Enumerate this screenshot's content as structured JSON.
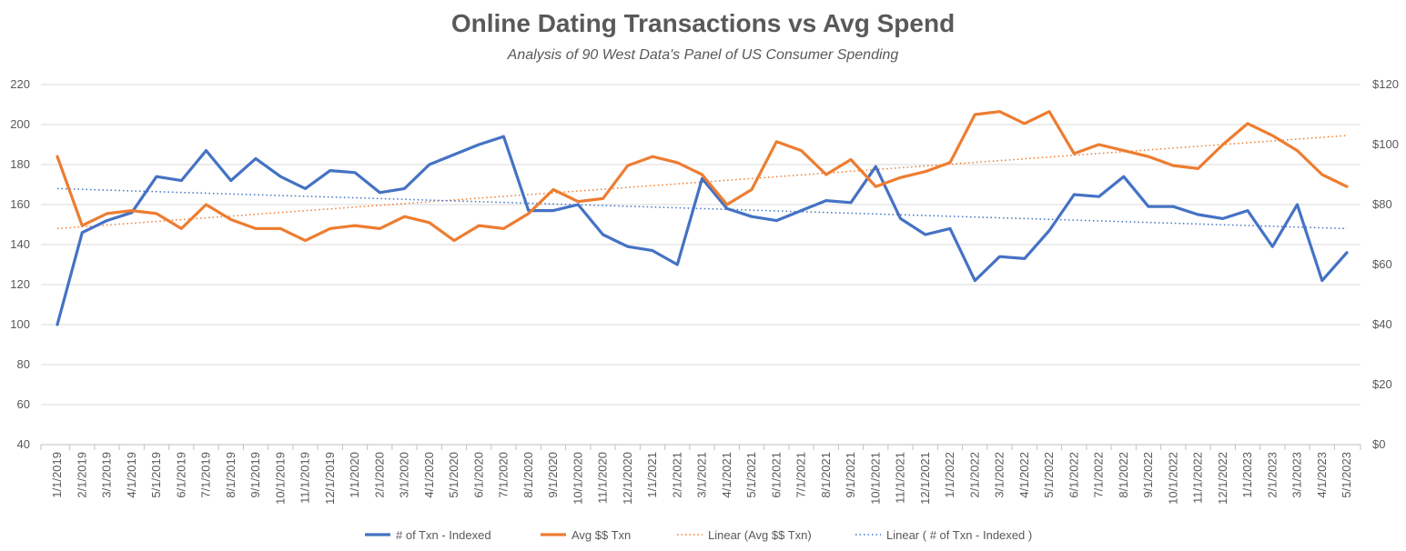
{
  "chart_data": {
    "type": "line",
    "title": "Online Dating Transactions vs Avg Spend",
    "subtitle": "Analysis of 90 West Data's Panel of US Consumer Spending",
    "x": [
      "1/1/2019",
      "2/1/2019",
      "3/1/2019",
      "4/1/2019",
      "5/1/2019",
      "6/1/2019",
      "7/1/2019",
      "8/1/2019",
      "9/1/2019",
      "10/1/2019",
      "11/1/2019",
      "12/1/2019",
      "1/1/2020",
      "2/1/2020",
      "3/1/2020",
      "4/1/2020",
      "5/1/2020",
      "6/1/2020",
      "7/1/2020",
      "8/1/2020",
      "9/1/2020",
      "10/1/2020",
      "11/1/2020",
      "12/1/2020",
      "1/1/2021",
      "2/1/2021",
      "3/1/2021",
      "4/1/2021",
      "5/1/2021",
      "6/1/2021",
      "7/1/2021",
      "8/1/2021",
      "9/1/2021",
      "10/1/2021",
      "11/1/2021",
      "12/1/2021",
      "1/1/2022",
      "2/1/2022",
      "3/1/2022",
      "4/1/2022",
      "5/1/2022",
      "6/1/2022",
      "7/1/2022",
      "8/1/2022",
      "9/1/2022",
      "10/1/2022",
      "11/1/2022",
      "12/1/2022",
      "1/1/2023",
      "2/1/2023",
      "3/1/2023",
      "4/1/2023",
      "5/1/2023"
    ],
    "left_axis": {
      "min": 40,
      "max": 220,
      "ticks": [
        40,
        60,
        80,
        100,
        120,
        140,
        160,
        180,
        200,
        220
      ]
    },
    "right_axis": {
      "min": 0,
      "max": 120,
      "ticks": [
        0,
        20,
        40,
        60,
        80,
        100,
        120
      ],
      "tick_labels": [
        "$0",
        "$20",
        "$40",
        "$60",
        "$80",
        "$100",
        "$120"
      ]
    },
    "series": [
      {
        "name": "# of Txn - Indexed",
        "axis": "left",
        "color": "#4472C4",
        "values": [
          100,
          146,
          152,
          156,
          174,
          172,
          187,
          172,
          183,
          174,
          168,
          177,
          176,
          166,
          168,
          180,
          185,
          190,
          194,
          157,
          157,
          160,
          145,
          139,
          137,
          130,
          173,
          158,
          154,
          152,
          157,
          162,
          161,
          179,
          153,
          145,
          148,
          122,
          134,
          133,
          147,
          165,
          164,
          174,
          159,
          159,
          155,
          153,
          157,
          139,
          160,
          122,
          136
        ]
      },
      {
        "name": "Avg $$ Txn",
        "axis": "right",
        "color": "#ED7D31",
        "values": [
          96,
          73,
          77,
          78,
          77,
          72,
          80,
          75,
          72,
          72,
          68,
          72,
          73,
          72,
          76,
          74,
          68,
          73,
          72,
          77,
          85,
          81,
          82,
          93,
          96,
          94,
          90,
          80,
          85,
          101,
          98,
          90,
          95,
          86,
          89,
          91,
          94,
          110,
          111,
          107,
          111,
          97,
          100,
          98,
          96,
          93,
          92,
          100,
          107,
          103,
          98,
          90,
          86
        ]
      },
      {
        "name": "Linear (Avg $$ Txn)",
        "axis": "right",
        "color": "#ED7D31",
        "style": "dotted",
        "trend": [
          72,
          103
        ]
      },
      {
        "name": "Linear ( # of Txn - Indexed )",
        "axis": "left",
        "color": "#4472C4",
        "style": "dotted",
        "trend": [
          168,
          148
        ]
      }
    ],
    "legend": "bottom",
    "grid": true
  }
}
